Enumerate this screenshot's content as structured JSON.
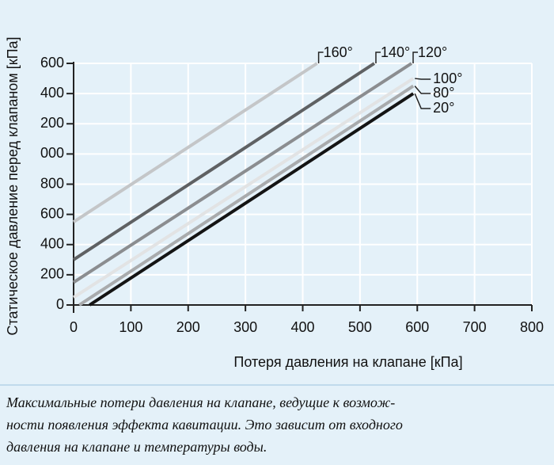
{
  "chart_data": {
    "type": "line",
    "y_label": "Статическое давление перед клапаном [кПа]",
    "x_label": "Потеря давления на клапане [кПа]",
    "xlim": [
      0,
      800
    ],
    "xticks": [
      0,
      100,
      200,
      300,
      400,
      500,
      600,
      700,
      800
    ],
    "ylim": [
      0,
      1600
    ],
    "yticks": [
      0,
      200,
      400,
      600,
      800,
      {
        "value": 1000,
        "label": "000"
      },
      {
        "value": 1200,
        "label": "200"
      },
      {
        "value": 1400,
        "label": "400"
      },
      {
        "value": 1600,
        "label": "600"
      }
    ],
    "grid": true,
    "series": [
      {
        "name": "160°",
        "color": "#c4c6c8",
        "x": [
          0,
          425
        ],
        "values": [
          550,
          1600
        ]
      },
      {
        "name": "140°",
        "color": "#5f6163",
        "x": [
          0,
          525
        ],
        "values": [
          300,
          1600
        ]
      },
      {
        "name": "120°",
        "color": "#8b8d90",
        "x": [
          0,
          590
        ],
        "values": [
          150,
          1600
        ]
      },
      {
        "name": "100°",
        "color": "#e2e3e4",
        "x": [
          0,
          593
        ],
        "values": [
          50,
          1500
        ]
      },
      {
        "name": "80°",
        "color": "#a9abad",
        "x": [
          10,
          593
        ],
        "values": [
          0,
          1450
        ]
      },
      {
        "name": "20°",
        "color": "#141414",
        "x": [
          28,
          593
        ],
        "values": [
          0,
          1400
        ]
      }
    ]
  },
  "caption": [
    "Максимальные потери давления на клапане, ведущие к возмож-",
    "ности появления эффекта кавитации. Это зависит от входного",
    "давления на клапане и температуры воды."
  ]
}
